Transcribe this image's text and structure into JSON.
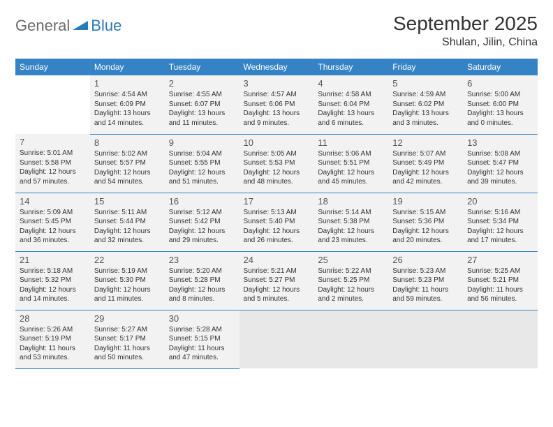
{
  "logo": {
    "general": "General",
    "blue": "Blue"
  },
  "title": "September 2025",
  "subtitle": "Shulan, Jilin, China",
  "colors": {
    "header_bg": "#3583c5",
    "header_fg": "#ffffff",
    "cell_bg": "#f2f2f2",
    "border": "#3583c5",
    "logo_gray": "#6b6b6b",
    "logo_blue": "#2a7ab9"
  },
  "weekdays": [
    "Sunday",
    "Monday",
    "Tuesday",
    "Wednesday",
    "Thursday",
    "Friday",
    "Saturday"
  ],
  "labels": {
    "sunrise": "Sunrise:",
    "sunset": "Sunset:",
    "daylight": "Daylight:"
  },
  "start_offset": 1,
  "days": [
    {
      "n": 1,
      "sunrise": "4:54 AM",
      "sunset": "6:09 PM",
      "daylight": "13 hours and 14 minutes."
    },
    {
      "n": 2,
      "sunrise": "4:55 AM",
      "sunset": "6:07 PM",
      "daylight": "13 hours and 11 minutes."
    },
    {
      "n": 3,
      "sunrise": "4:57 AM",
      "sunset": "6:06 PM",
      "daylight": "13 hours and 9 minutes."
    },
    {
      "n": 4,
      "sunrise": "4:58 AM",
      "sunset": "6:04 PM",
      "daylight": "13 hours and 6 minutes."
    },
    {
      "n": 5,
      "sunrise": "4:59 AM",
      "sunset": "6:02 PM",
      "daylight": "13 hours and 3 minutes."
    },
    {
      "n": 6,
      "sunrise": "5:00 AM",
      "sunset": "6:00 PM",
      "daylight": "13 hours and 0 minutes."
    },
    {
      "n": 7,
      "sunrise": "5:01 AM",
      "sunset": "5:58 PM",
      "daylight": "12 hours and 57 minutes."
    },
    {
      "n": 8,
      "sunrise": "5:02 AM",
      "sunset": "5:57 PM",
      "daylight": "12 hours and 54 minutes."
    },
    {
      "n": 9,
      "sunrise": "5:04 AM",
      "sunset": "5:55 PM",
      "daylight": "12 hours and 51 minutes."
    },
    {
      "n": 10,
      "sunrise": "5:05 AM",
      "sunset": "5:53 PM",
      "daylight": "12 hours and 48 minutes."
    },
    {
      "n": 11,
      "sunrise": "5:06 AM",
      "sunset": "5:51 PM",
      "daylight": "12 hours and 45 minutes."
    },
    {
      "n": 12,
      "sunrise": "5:07 AM",
      "sunset": "5:49 PM",
      "daylight": "12 hours and 42 minutes."
    },
    {
      "n": 13,
      "sunrise": "5:08 AM",
      "sunset": "5:47 PM",
      "daylight": "12 hours and 39 minutes."
    },
    {
      "n": 14,
      "sunrise": "5:09 AM",
      "sunset": "5:45 PM",
      "daylight": "12 hours and 36 minutes."
    },
    {
      "n": 15,
      "sunrise": "5:11 AM",
      "sunset": "5:44 PM",
      "daylight": "12 hours and 32 minutes."
    },
    {
      "n": 16,
      "sunrise": "5:12 AM",
      "sunset": "5:42 PM",
      "daylight": "12 hours and 29 minutes."
    },
    {
      "n": 17,
      "sunrise": "5:13 AM",
      "sunset": "5:40 PM",
      "daylight": "12 hours and 26 minutes."
    },
    {
      "n": 18,
      "sunrise": "5:14 AM",
      "sunset": "5:38 PM",
      "daylight": "12 hours and 23 minutes."
    },
    {
      "n": 19,
      "sunrise": "5:15 AM",
      "sunset": "5:36 PM",
      "daylight": "12 hours and 20 minutes."
    },
    {
      "n": 20,
      "sunrise": "5:16 AM",
      "sunset": "5:34 PM",
      "daylight": "12 hours and 17 minutes."
    },
    {
      "n": 21,
      "sunrise": "5:18 AM",
      "sunset": "5:32 PM",
      "daylight": "12 hours and 14 minutes."
    },
    {
      "n": 22,
      "sunrise": "5:19 AM",
      "sunset": "5:30 PM",
      "daylight": "12 hours and 11 minutes."
    },
    {
      "n": 23,
      "sunrise": "5:20 AM",
      "sunset": "5:28 PM",
      "daylight": "12 hours and 8 minutes."
    },
    {
      "n": 24,
      "sunrise": "5:21 AM",
      "sunset": "5:27 PM",
      "daylight": "12 hours and 5 minutes."
    },
    {
      "n": 25,
      "sunrise": "5:22 AM",
      "sunset": "5:25 PM",
      "daylight": "12 hours and 2 minutes."
    },
    {
      "n": 26,
      "sunrise": "5:23 AM",
      "sunset": "5:23 PM",
      "daylight": "11 hours and 59 minutes."
    },
    {
      "n": 27,
      "sunrise": "5:25 AM",
      "sunset": "5:21 PM",
      "daylight": "11 hours and 56 minutes."
    },
    {
      "n": 28,
      "sunrise": "5:26 AM",
      "sunset": "5:19 PM",
      "daylight": "11 hours and 53 minutes."
    },
    {
      "n": 29,
      "sunrise": "5:27 AM",
      "sunset": "5:17 PM",
      "daylight": "11 hours and 50 minutes."
    },
    {
      "n": 30,
      "sunrise": "5:28 AM",
      "sunset": "5:15 PM",
      "daylight": "11 hours and 47 minutes."
    }
  ]
}
